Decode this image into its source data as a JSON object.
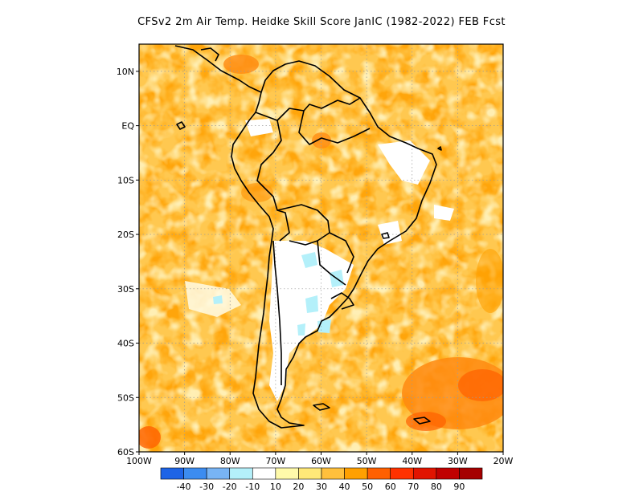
{
  "title": "CFSv2  2m Air Temp. Heidke Skill Score JanIC (1982-2022) FEB Fcst",
  "map": {
    "lon_range": [
      -100,
      -20
    ],
    "lat_range": [
      -60,
      15
    ],
    "lat_labels": [
      {
        "value": 10,
        "label": "10N"
      },
      {
        "value": 0,
        "label": "EQ"
      },
      {
        "value": -10,
        "label": "10S"
      },
      {
        "value": -20,
        "label": "20S"
      },
      {
        "value": -30,
        "label": "30S"
      },
      {
        "value": -40,
        "label": "40S"
      },
      {
        "value": -50,
        "label": "50S"
      },
      {
        "value": -60,
        "label": "60S"
      }
    ],
    "lon_labels": [
      {
        "value": -100,
        "label": "100W"
      },
      {
        "value": -90,
        "label": "90W"
      },
      {
        "value": -80,
        "label": "80W"
      },
      {
        "value": -70,
        "label": "70W"
      },
      {
        "value": -60,
        "label": "60W"
      },
      {
        "value": -50,
        "label": "50W"
      },
      {
        "value": -40,
        "label": "40W"
      },
      {
        "value": -30,
        "label": "30W"
      },
      {
        "value": -20,
        "label": "20W"
      }
    ]
  },
  "colorbar": {
    "colors": [
      "#1e64e6",
      "#3c8cf0",
      "#78b4f5",
      "#b4f0fa",
      "#ffffff",
      "#fffaaa",
      "#ffe878",
      "#ffc03c",
      "#ffa000",
      "#ff6000",
      "#ff3200",
      "#e11400",
      "#c00000",
      "#a50000"
    ],
    "labels": [
      "-40",
      "-30",
      "-20",
      "-10",
      "10",
      "20",
      "30",
      "40",
      "50",
      "60",
      "70",
      "80",
      "90"
    ]
  }
}
